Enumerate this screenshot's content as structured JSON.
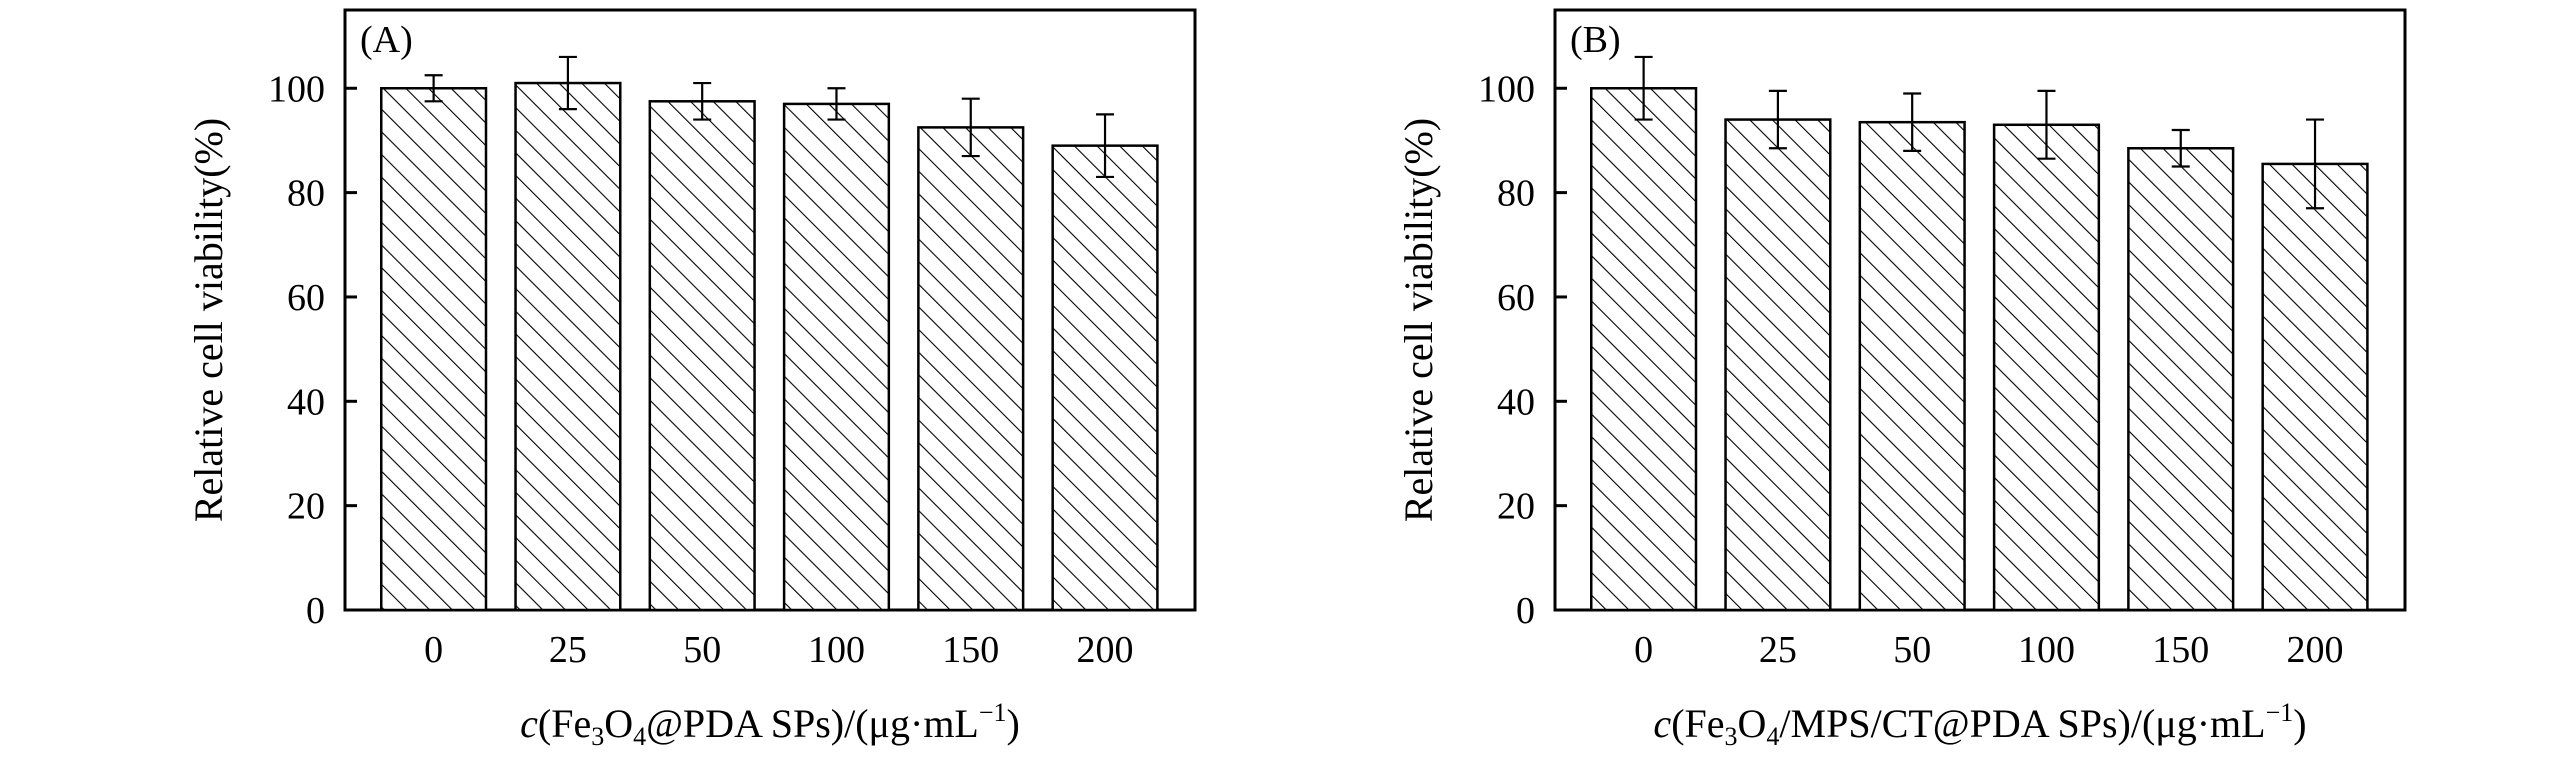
{
  "chart_data": [
    {
      "type": "bar",
      "panel_label": "(A)",
      "categories": [
        "0",
        "25",
        "50",
        "100",
        "150",
        "200"
      ],
      "values": [
        100,
        101,
        97.5,
        97,
        92.5,
        89
      ],
      "errors": [
        2.5,
        5,
        3.5,
        3,
        5.5,
        6
      ],
      "ylabel": "Relative cell viability(%)",
      "xlabel": {
        "prefix": "c",
        "pre_sub": "(Fe",
        "sub1": "3",
        "mid1": "O",
        "sub2": "4",
        "post_sub": "@PDA SPs)/(μg·mL",
        "sup": "−1",
        "tail": ")"
      },
      "ylim": [
        0,
        115
      ],
      "yticks": [
        0,
        20,
        40,
        60,
        80,
        100
      ],
      "pattern": "diagonal-hatch",
      "fill": "#ffffff",
      "stroke": "#000000"
    },
    {
      "type": "bar",
      "panel_label": "(B)",
      "categories": [
        "0",
        "25",
        "50",
        "100",
        "150",
        "200"
      ],
      "values": [
        100,
        94,
        93.5,
        93,
        88.5,
        85.5
      ],
      "errors": [
        6,
        5.5,
        5.5,
        6.5,
        3.5,
        8.5
      ],
      "ylabel": "Relative cell viability(%)",
      "xlabel": {
        "prefix": "c",
        "pre_sub": "(Fe",
        "sub1": "3",
        "mid1": "O",
        "sub2": "4",
        "post_sub": "/MPS/CT@PDA SPs)/(μg·mL",
        "sup": "−1",
        "tail": ")"
      },
      "ylim": [
        0,
        115
      ],
      "yticks": [
        0,
        20,
        40,
        60,
        80,
        100
      ],
      "pattern": "diagonal-hatch",
      "fill": "#ffffff",
      "stroke": "#000000"
    }
  ]
}
